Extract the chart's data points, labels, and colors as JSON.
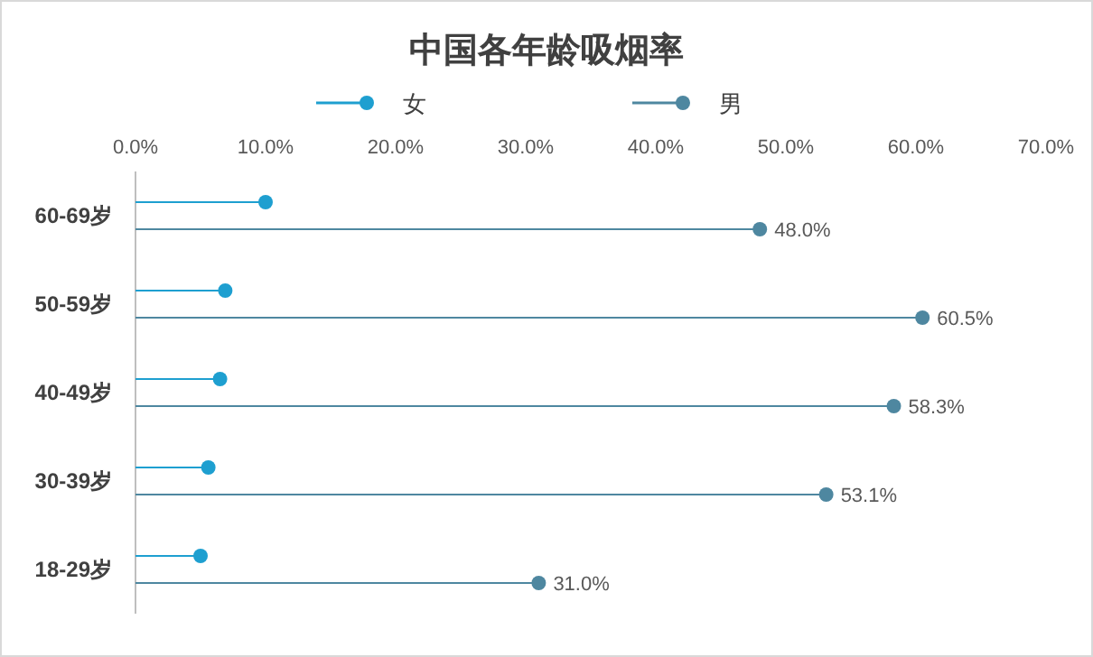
{
  "chart_data": {
    "type": "lollipop",
    "orientation": "horizontal",
    "title": "中国各年龄吸烟率",
    "categories": [
      "60-69岁",
      "50-59岁",
      "40-49岁",
      "30-39岁",
      "18-29岁"
    ],
    "xlim": [
      0,
      70
    ],
    "xticks": [
      {
        "value": 0,
        "label": "0.0%"
      },
      {
        "value": 10,
        "label": "10.0%"
      },
      {
        "value": 20,
        "label": "20.0%"
      },
      {
        "value": 30,
        "label": "30.0%"
      },
      {
        "value": 40,
        "label": "40.0%"
      },
      {
        "value": 50,
        "label": "50.0%"
      },
      {
        "value": 60,
        "label": "60.0%"
      },
      {
        "value": 70,
        "label": "70.0%"
      }
    ],
    "legend": "top",
    "marker": "circle",
    "series": [
      {
        "name": "女",
        "color": "#1e9fd0",
        "values": [
          10.0,
          6.9,
          6.5,
          5.6,
          5.0
        ]
      },
      {
        "name": "男",
        "color": "#4e87a0",
        "values": [
          48.0,
          60.5,
          58.3,
          53.1,
          31.0
        ],
        "value_labels": [
          "48.0%",
          "60.5%",
          "58.3%",
          "53.1%",
          "31.0%"
        ]
      }
    ]
  }
}
